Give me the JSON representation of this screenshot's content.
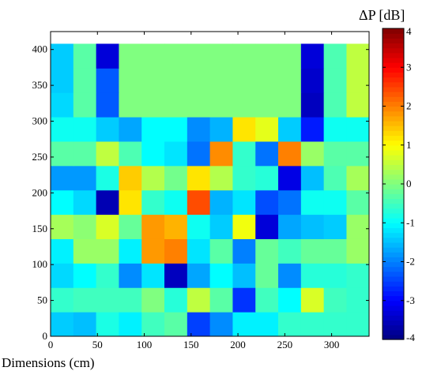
{
  "chart_data": {
    "type": "heatmap",
    "title": "",
    "xlabel": "Dimensions (cm)",
    "ylabel": "",
    "colorbar_title": "ΔP  [dB]",
    "xlim": [
      0,
      340
    ],
    "ylim": [
      0,
      425
    ],
    "xticks": [
      0,
      50,
      100,
      150,
      200,
      250,
      300
    ],
    "yticks": [
      0,
      50,
      100,
      150,
      200,
      250,
      300,
      350,
      400
    ],
    "colorbar_range": [
      -4,
      4
    ],
    "colorbar_ticks": [
      4,
      3,
      2,
      1,
      0,
      -1,
      -2,
      -3,
      -4
    ],
    "colormap": "jet",
    "grid": false,
    "cell_width": 24.3,
    "cell_height": 34,
    "columns": 14,
    "rows": 12,
    "values": [
      [
        -1.4,
        -1.5,
        -0.8,
        -1.1,
        -0.5,
        -0.3,
        -2.5,
        -1.9,
        -1.1,
        -1.1,
        -0.6,
        -0.6,
        -0.6,
        -0.6
      ],
      [
        -0.6,
        -0.5,
        -0.5,
        -0.5,
        0.0,
        -0.7,
        0.5,
        -0.3,
        -2.6,
        -0.5,
        -1.0,
        0.7,
        -0.5,
        -0.6
      ],
      [
        -1.3,
        -1.0,
        -0.6,
        -1.9,
        -1.2,
        -3.5,
        -1.7,
        -1.0,
        -1.5,
        -0.2,
        -1.9,
        -0.7,
        -0.7,
        -0.6
      ],
      [
        -1.1,
        0.2,
        0.2,
        -1.1,
        1.8,
        2.0,
        -1.2,
        -0.3,
        -2.0,
        -0.2,
        -0.5,
        -0.2,
        -0.2,
        0.2
      ],
      [
        0.3,
        0.1,
        0.7,
        -0.2,
        1.8,
        1.6,
        -0.9,
        -1.4,
        0.9,
        -3.3,
        -1.7,
        -1.5,
        -1.4,
        0.2
      ],
      [
        -1.0,
        -1.3,
        -3.6,
        1.2,
        -0.6,
        -0.9,
        2.4,
        -1.6,
        -1.2,
        -2.4,
        -2.1,
        -0.9,
        -0.9,
        -0.3
      ],
      [
        -1.8,
        -1.8,
        -0.8,
        1.4,
        0.4,
        -0.1,
        1.2,
        0.4,
        -0.6,
        -0.7,
        -3.2,
        -1.5,
        -0.4,
        0.3
      ],
      [
        -0.3,
        -0.3,
        0.5,
        -0.4,
        -1.0,
        -1.2,
        -2.1,
        1.9,
        -0.6,
        -2.1,
        2.0,
        0.2,
        -0.3,
        -0.3
      ],
      [
        -0.9,
        -0.9,
        -1.4,
        -1.7,
        -1.0,
        -1.0,
        -1.9,
        -1.6,
        1.2,
        0.8,
        -1.4,
        -2.8,
        -0.9,
        -0.9
      ],
      [
        -1.3,
        -0.3,
        -2.3,
        0.0,
        0.0,
        0.0,
        0.0,
        0.0,
        0.0,
        0.0,
        0.0,
        -3.5,
        -0.4,
        0.5
      ],
      [
        -1.4,
        -0.3,
        -2.3,
        0.0,
        0.0,
        0.0,
        0.0,
        0.0,
        0.0,
        0.0,
        0.0,
        -3.4,
        -0.4,
        0.5
      ],
      [
        -1.4,
        -0.3,
        -3.3,
        0.0,
        0.0,
        0.0,
        0.0,
        0.0,
        0.0,
        0.0,
        0.0,
        -3.3,
        -0.4,
        0.5
      ]
    ]
  }
}
